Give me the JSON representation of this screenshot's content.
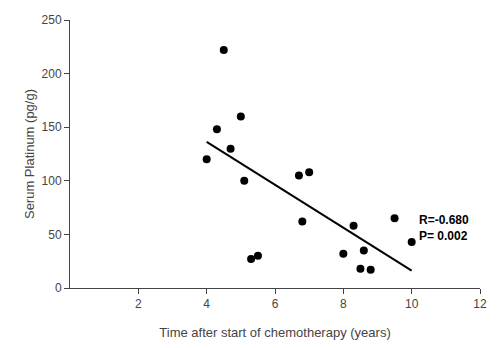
{
  "chart_data": {
    "type": "scatter",
    "xlabel": "Time after start of chemotherapy (years)",
    "ylabel": "Serum Platinum (pg/g)",
    "series": [
      {
        "type": "scatter",
        "marker": "circle",
        "color": "#000000",
        "x": [
          4.0,
          4.3,
          4.5,
          4.7,
          5.0,
          5.1,
          5.3,
          5.5,
          6.7,
          6.8,
          7.0,
          8.0,
          8.3,
          8.5,
          8.6,
          8.8,
          9.5,
          10.0
        ],
        "values": [
          120,
          148,
          222,
          130,
          160,
          100,
          27,
          30,
          105,
          62,
          108,
          32,
          58,
          18,
          35,
          17,
          65,
          43
        ]
      },
      {
        "type": "line",
        "line_style": "solid",
        "color": "#000000",
        "x": [
          4.0,
          10.0
        ],
        "values": [
          136.2347,
          16.207
        ]
      }
    ],
    "annotations": [
      {
        "text": "R=-0.680\nP= 0.002",
        "x": 10.15,
        "y": 72
      }
    ],
    "xlim": [
      0,
      12
    ],
    "ylim": [
      0,
      250
    ],
    "xticks": [
      2,
      4,
      6,
      8,
      10,
      12
    ],
    "yticks": [
      0,
      50,
      100,
      150,
      200,
      250
    ],
    "grid": false
  }
}
